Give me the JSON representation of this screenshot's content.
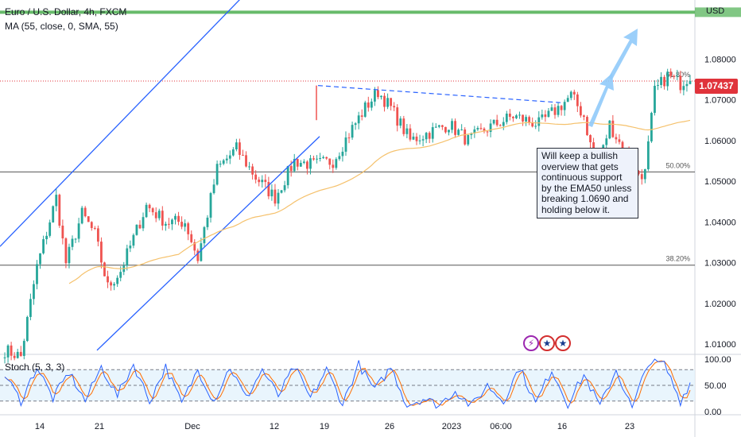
{
  "header": {
    "symbol_line": "Euro / U.S. Dollar, 4h, FXCM",
    "indicator_line": "MA (55, close, 0, SMA, 55)",
    "stoch_label": "Stoch (5, 3, 3)",
    "axis_unit": "USD"
  },
  "annotation": {
    "text": "Will keep a bullish overview that gets continuous support by the EMA50 unless breaking 1.0690 and holding below it."
  },
  "last_price_label": "1.07437",
  "event_icons": [
    "lightning-icon",
    "us-flag-icon",
    "us-flag-icon"
  ],
  "colors": {
    "up": "#26a69a",
    "down": "#ef5350",
    "ma": "#f5c16c",
    "channel": "#2962ff",
    "stoch_k": "#2962ff",
    "stoch_d": "#ff6d00",
    "resistance": "#4caf50",
    "price_badge": "#e0333b",
    "arrow": "#90caf9"
  },
  "chart_data": {
    "type": "candlestick",
    "x_tick_labels": [
      "14",
      "21",
      "Dec",
      "12",
      "19",
      "26",
      "2023",
      "06:00",
      "16",
      "23"
    ],
    "y_tick_labels": [
      "1.01000",
      "1.02000",
      "1.03000",
      "1.04000",
      "1.05000",
      "1.06000",
      "1.07000",
      "1.08000"
    ],
    "y_range": [
      1.0075,
      1.0945
    ],
    "fib_levels": [
      {
        "label": "61.80%",
        "value": 1.0746
      },
      {
        "label": "50.00%",
        "value": 1.0523
      },
      {
        "label": "38.20%",
        "value": 1.0294
      }
    ],
    "resistance_level": 1.0915,
    "ma_period": 55,
    "price_waypoints": [
      [
        0,
        1.0085
      ],
      [
        5,
        1.007
      ],
      [
        10,
        1.029
      ],
      [
        16,
        1.046
      ],
      [
        19,
        1.03
      ],
      [
        24,
        1.042
      ],
      [
        28,
        1.037
      ],
      [
        32,
        1.024
      ],
      [
        36,
        1.028
      ],
      [
        44,
        1.044
      ],
      [
        50,
        1.04
      ],
      [
        56,
        1.04
      ],
      [
        60,
        1.031
      ],
      [
        66,
        1.053
      ],
      [
        72,
        1.058
      ],
      [
        78,
        1.051
      ],
      [
        84,
        1.046
      ],
      [
        90,
        1.055
      ],
      [
        96,
        1.054
      ],
      [
        102,
        1.055
      ],
      [
        108,
        1.063
      ],
      [
        112,
        1.068
      ],
      [
        116,
        1.072
      ],
      [
        120,
        1.068
      ],
      [
        126,
        1.06
      ],
      [
        132,
        1.062
      ],
      [
        138,
        1.064
      ],
      [
        144,
        1.06
      ],
      [
        150,
        1.063
      ],
      [
        158,
        1.066
      ],
      [
        166,
        1.064
      ],
      [
        172,
        1.068
      ],
      [
        176,
        1.071
      ],
      [
        180,
        1.066
      ],
      [
        184,
        1.052
      ],
      [
        188,
        1.064
      ],
      [
        192,
        1.058
      ],
      [
        196,
        1.052
      ],
      [
        199,
        1.052
      ],
      [
        202,
        1.072
      ],
      [
        206,
        1.076
      ],
      [
        210,
        1.074
      ],
      [
        213,
        1.076
      ]
    ],
    "stoch_waypoints": [
      [
        0,
        70
      ],
      [
        5,
        20
      ],
      [
        10,
        85
      ],
      [
        15,
        25
      ],
      [
        20,
        75
      ],
      [
        25,
        20
      ],
      [
        30,
        85
      ],
      [
        35,
        30
      ],
      [
        40,
        90
      ],
      [
        45,
        20
      ],
      [
        50,
        85
      ],
      [
        55,
        15
      ],
      [
        60,
        80
      ],
      [
        65,
        20
      ],
      [
        70,
        85
      ],
      [
        75,
        25
      ],
      [
        80,
        80
      ],
      [
        85,
        30
      ],
      [
        90,
        85
      ],
      [
        95,
        25
      ],
      [
        100,
        80
      ],
      [
        105,
        15
      ],
      [
        110,
        90
      ],
      [
        115,
        40
      ],
      [
        120,
        85
      ],
      [
        125,
        12
      ],
      [
        130,
        25
      ],
      [
        135,
        12
      ],
      [
        140,
        40
      ],
      [
        145,
        10
      ],
      [
        150,
        50
      ],
      [
        155,
        20
      ],
      [
        160,
        85
      ],
      [
        165,
        15
      ],
      [
        170,
        80
      ],
      [
        175,
        15
      ],
      [
        180,
        70
      ],
      [
        185,
        10
      ],
      [
        190,
        80
      ],
      [
        195,
        5
      ],
      [
        200,
        95
      ],
      [
        205,
        90
      ],
      [
        210,
        20
      ],
      [
        213,
        55
      ]
    ],
    "stoch_levels": [
      80,
      50,
      20
    ],
    "stoch_range": [
      0,
      100
    ],
    "stoch_tick_labels": [
      "100.00",
      "50.00",
      "0.00"
    ]
  }
}
